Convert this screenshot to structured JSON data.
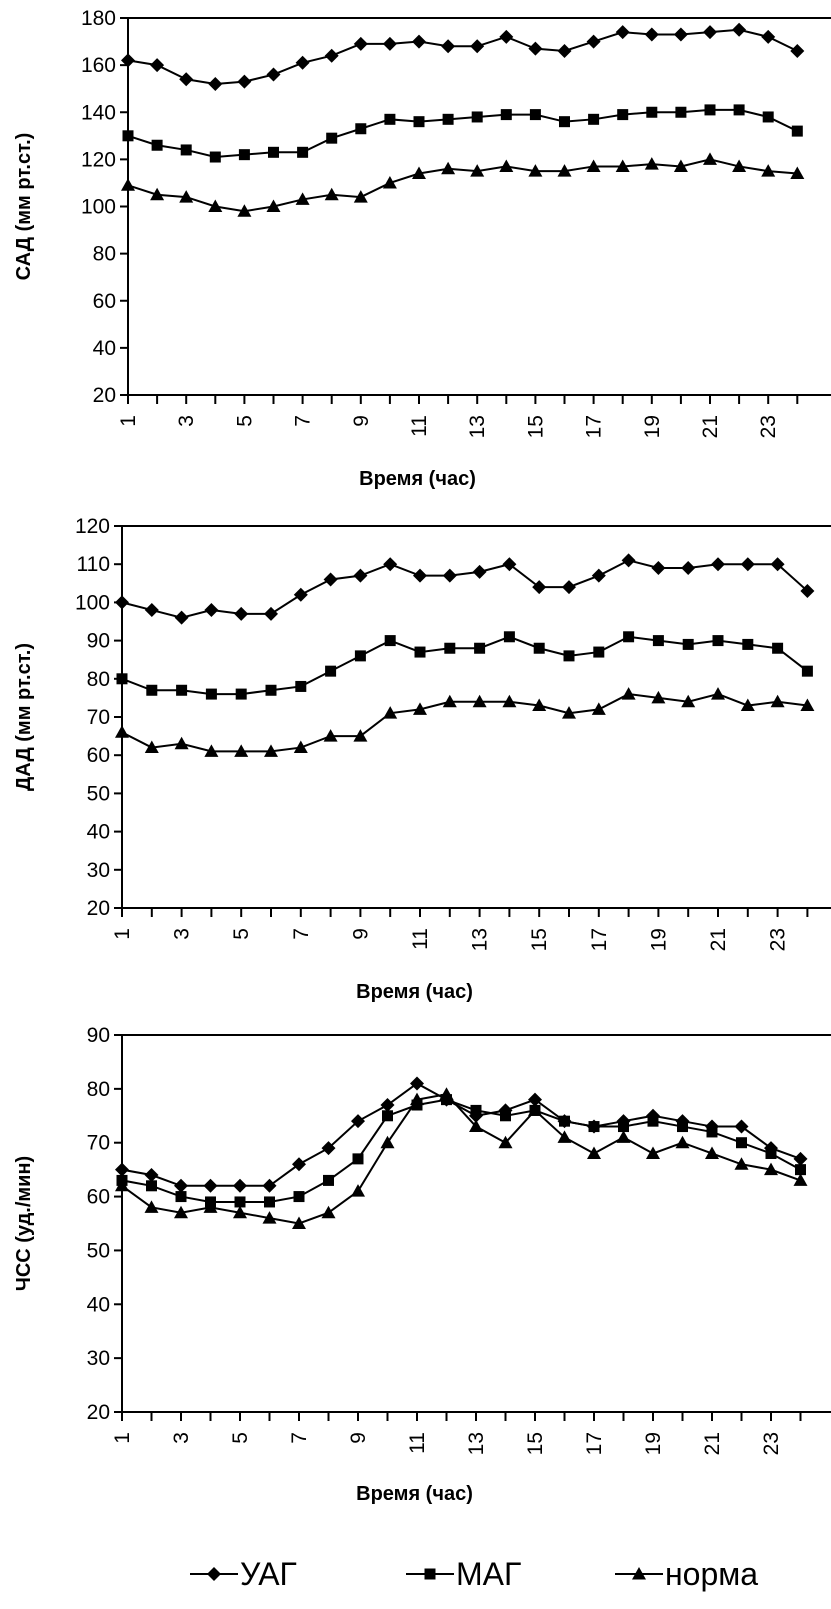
{
  "chart_data": [
    {
      "type": "line",
      "ylabel": "САД (мм рт.ст.)",
      "xlabel": "Время (час)",
      "ylim": [
        20,
        180
      ],
      "yticks": [
        20,
        40,
        60,
        80,
        100,
        120,
        140,
        160,
        180
      ],
      "xtick_labels": [
        "1",
        "3",
        "5",
        "7",
        "9",
        "11",
        "13",
        "15",
        "17",
        "19",
        "21",
        "23"
      ],
      "x": [
        1,
        2,
        3,
        4,
        5,
        6,
        7,
        8,
        9,
        10,
        11,
        12,
        13,
        14,
        15,
        16,
        17,
        18,
        19,
        20,
        21,
        22,
        23,
        24
      ],
      "series": [
        {
          "name": "УАГ",
          "values": [
            162,
            160,
            154,
            152,
            153,
            156,
            161,
            164,
            169,
            169,
            170,
            168,
            168,
            172,
            167,
            166,
            170,
            174,
            173,
            173,
            174,
            175,
            172,
            166
          ]
        },
        {
          "name": "МАГ",
          "values": [
            130,
            126,
            124,
            121,
            122,
            123,
            123,
            129,
            133,
            137,
            136,
            137,
            138,
            139,
            139,
            136,
            137,
            139,
            140,
            140,
            141,
            141,
            138,
            132
          ]
        },
        {
          "name": "норма",
          "values": [
            109,
            105,
            104,
            100,
            98,
            100,
            103,
            105,
            104,
            110,
            114,
            116,
            115,
            117,
            115,
            115,
            117,
            117,
            118,
            117,
            120,
            117,
            115,
            114
          ]
        }
      ]
    },
    {
      "type": "line",
      "ylabel": "ДАД (мм рт.ст.)",
      "xlabel": "Время (час)",
      "ylim": [
        20,
        120
      ],
      "yticks": [
        20,
        30,
        40,
        50,
        60,
        70,
        80,
        90,
        100,
        110,
        120
      ],
      "xtick_labels": [
        "1",
        "3",
        "5",
        "7",
        "9",
        "11",
        "13",
        "15",
        "17",
        "19",
        "21",
        "23"
      ],
      "x": [
        1,
        2,
        3,
        4,
        5,
        6,
        7,
        8,
        9,
        10,
        11,
        12,
        13,
        14,
        15,
        16,
        17,
        18,
        19,
        20,
        21,
        22,
        23,
        24
      ],
      "series": [
        {
          "name": "УАГ",
          "values": [
            100,
            98,
            96,
            98,
            97,
            97,
            102,
            106,
            107,
            110,
            107,
            107,
            108,
            110,
            104,
            104,
            107,
            111,
            109,
            109,
            110,
            110,
            110,
            103
          ]
        },
        {
          "name": "МАГ",
          "values": [
            80,
            77,
            77,
            76,
            76,
            77,
            78,
            82,
            86,
            90,
            87,
            88,
            88,
            91,
            88,
            86,
            87,
            91,
            90,
            89,
            90,
            89,
            88,
            82
          ]
        },
        {
          "name": "норма",
          "values": [
            66,
            62,
            63,
            61,
            61,
            61,
            62,
            65,
            65,
            71,
            72,
            74,
            74,
            74,
            73,
            71,
            72,
            76,
            75,
            74,
            76,
            73,
            74,
            73
          ]
        }
      ]
    },
    {
      "type": "line",
      "ylabel": "ЧСС (уд./мин)",
      "xlabel": "Время (час)",
      "ylim": [
        20,
        90
      ],
      "yticks": [
        20,
        30,
        40,
        50,
        60,
        70,
        80,
        90
      ],
      "xtick_labels": [
        "1",
        "3",
        "5",
        "7",
        "9",
        "11",
        "13",
        "15",
        "17",
        "19",
        "21",
        "23"
      ],
      "x": [
        1,
        2,
        3,
        4,
        5,
        6,
        7,
        8,
        9,
        10,
        11,
        12,
        13,
        14,
        15,
        16,
        17,
        18,
        19,
        20,
        21,
        22,
        23,
        24
      ],
      "series": [
        {
          "name": "УАГ",
          "values": [
            65,
            64,
            62,
            62,
            62,
            62,
            66,
            69,
            74,
            77,
            81,
            78,
            75,
            76,
            78,
            74,
            73,
            74,
            75,
            74,
            73,
            73,
            69,
            67
          ]
        },
        {
          "name": "МАГ",
          "values": [
            63,
            62,
            60,
            59,
            59,
            59,
            60,
            63,
            67,
            75,
            77,
            78,
            76,
            75,
            76,
            74,
            73,
            73,
            74,
            73,
            72,
            70,
            68,
            65
          ]
        },
        {
          "name": "норма",
          "values": [
            62,
            58,
            57,
            58,
            57,
            56,
            55,
            57,
            61,
            70,
            78,
            79,
            73,
            70,
            76,
            71,
            68,
            71,
            68,
            70,
            68,
            66,
            65,
            63
          ]
        }
      ]
    }
  ],
  "legend": {
    "items": [
      {
        "label": "УАГ",
        "marker": "diamond"
      },
      {
        "label": "МАГ",
        "marker": "square"
      },
      {
        "label": "норма",
        "marker": "triangle"
      }
    ]
  },
  "colors": {
    "line": "#000000",
    "background": "#ffffff"
  }
}
